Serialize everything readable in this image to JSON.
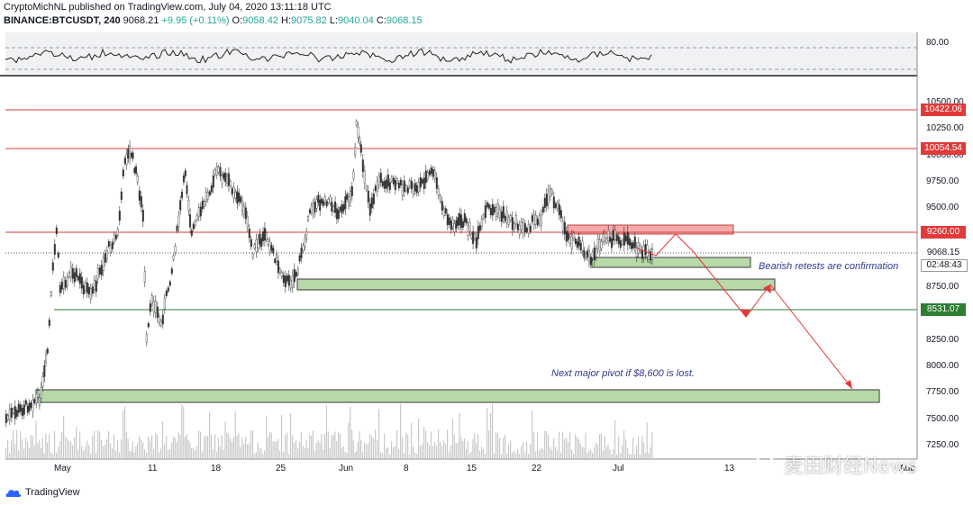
{
  "header": {
    "line1": "CryptoMichNL published on TradingView.com, July 04, 2020 13:11:18 UTC",
    "symbol": "BINANCE:BTCUSDT, 240",
    "last": "9068.21",
    "change": "+9.95 (+0.11%)",
    "o_label": "O:",
    "o_val": "9058.42",
    "h_label": "H:",
    "h_val": "9075.82",
    "l_label": "L:",
    "l_val": "9040.04",
    "c_label": "C:",
    "c_val": "9068.15"
  },
  "oscillator": {
    "level_label": "80.00"
  },
  "price_axis": {
    "ticks": [
      "10500.00",
      "10250.00",
      "10000.00",
      "9750.00",
      "9500.00",
      "9250.00",
      "9000.00",
      "8750.00",
      "8500.00",
      "8250.00",
      "8000.00",
      "7750.00",
      "7500.00",
      "7250.00"
    ]
  },
  "levels": [
    {
      "label": "10422.06",
      "color": "#e03a3a"
    },
    {
      "label": "10054.54",
      "color": "#e03a3a"
    },
    {
      "label": "9260.00",
      "color": "#e03a3a"
    },
    {
      "label": "8531.07",
      "color": "#2e7d32"
    }
  ],
  "current_price": {
    "label": "9068.15",
    "countdown": "02:48:43"
  },
  "time_axis": {
    "ticks": [
      "May",
      "11",
      "18",
      "25",
      "Jun",
      "8",
      "15",
      "22",
      "Jul",
      "13",
      "Aug"
    ]
  },
  "annotations": {
    "bearish": "Bearish retests are confirmation",
    "pivot": "Next major pivot if $8,600 is lost."
  },
  "footer": {
    "brand": "TradingView"
  },
  "watermark": {
    "text": "麦田财经News"
  },
  "colors": {
    "resistance": "#e03a3a",
    "support_zone": "#b7d9a8",
    "support_line": "#2e7d32",
    "candles": "#333333",
    "arrow": "#e53935"
  }
}
